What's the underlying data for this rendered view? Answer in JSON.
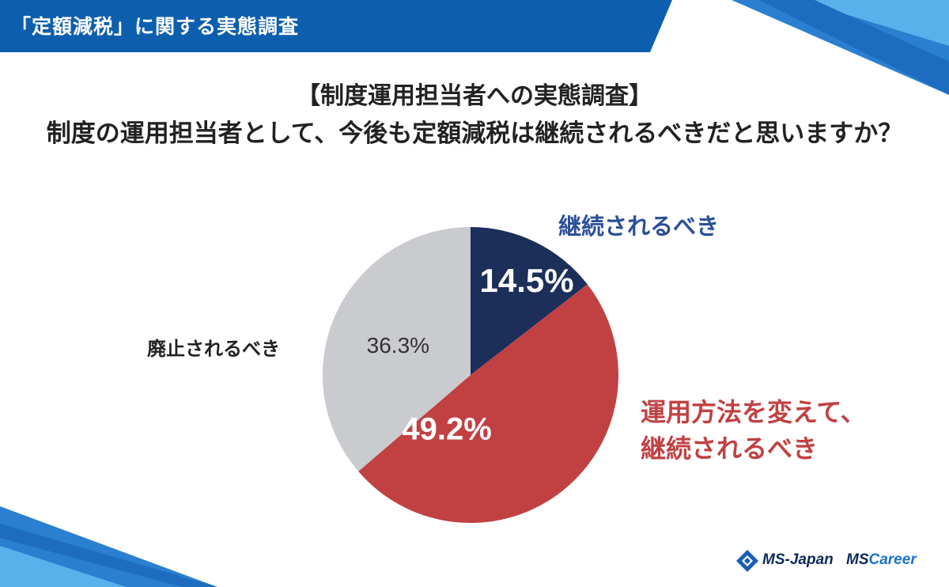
{
  "header": {
    "title": "「定額減税」に関する実態調査"
  },
  "title_line1": "【制度運用担当者への実態調査】",
  "title_line2": "制度の運用担当者として、今後も定額減税は継続されるべきだと思いますか？",
  "chart_data": {
    "type": "pie",
    "slices": [
      {
        "label": "継続されるべき",
        "value": 14.5,
        "value_label": "14.5%",
        "color": "#1b2f5a",
        "label_color": "#2b4f9a"
      },
      {
        "label": "運用方法を変えて、\n継続されるべき",
        "value": 49.2,
        "value_label": "49.2%",
        "color": "#c14142",
        "label_color": "#c14142"
      },
      {
        "label": "廃止されるべき",
        "value": 36.3,
        "value_label": "36.3%",
        "color": "#cacbce",
        "label_color": "#222222"
      }
    ],
    "start": "12 o'clock",
    "direction": "clockwise"
  },
  "logos": {
    "left": "MS-Japan",
    "right_prefix": "MS",
    "right_suffix": "Career"
  },
  "colors": {
    "header_blue": "#0d5fae",
    "accent_blue": "#1a74c8",
    "light_blue": "#4aa3e0"
  }
}
